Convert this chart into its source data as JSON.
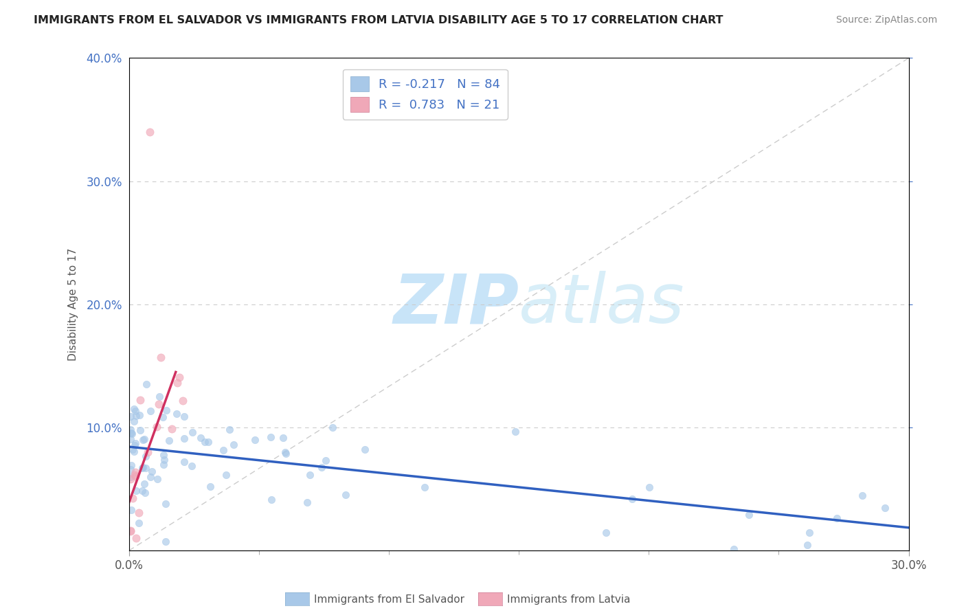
{
  "title": "IMMIGRANTS FROM EL SALVADOR VS IMMIGRANTS FROM LATVIA DISABILITY AGE 5 TO 17 CORRELATION CHART",
  "source": "Source: ZipAtlas.com",
  "ylabel_label": "Disability Age 5 to 17",
  "legend_label1": "Immigrants from El Salvador",
  "legend_label2": "Immigrants from Latvia",
  "R1": -0.217,
  "N1": 84,
  "R2": 0.783,
  "N2": 21,
  "xlim": [
    0.0,
    0.3
  ],
  "ylim": [
    0.0,
    0.4
  ],
  "xtick_left": "0.0%",
  "xtick_right": "30.0%",
  "yticks": [
    0.1,
    0.2,
    0.3,
    0.4
  ],
  "ytick_labels": [
    "10.0%",
    "20.0%",
    "30.0%",
    "40.0%"
  ],
  "color_blue": "#a8c8e8",
  "color_pink": "#f0a8b8",
  "trend_blue": "#3060c0",
  "trend_pink": "#d03060",
  "watermark_zip": "ZIP",
  "watermark_atlas": "atlas",
  "watermark_color": "#c8e4f8",
  "grid_color": "#cccccc",
  "title_color": "#222222",
  "source_color": "#888888",
  "axis_color": "#999999",
  "label_color": "#555555",
  "blue_label_color": "#4472c4",
  "seed": 99
}
